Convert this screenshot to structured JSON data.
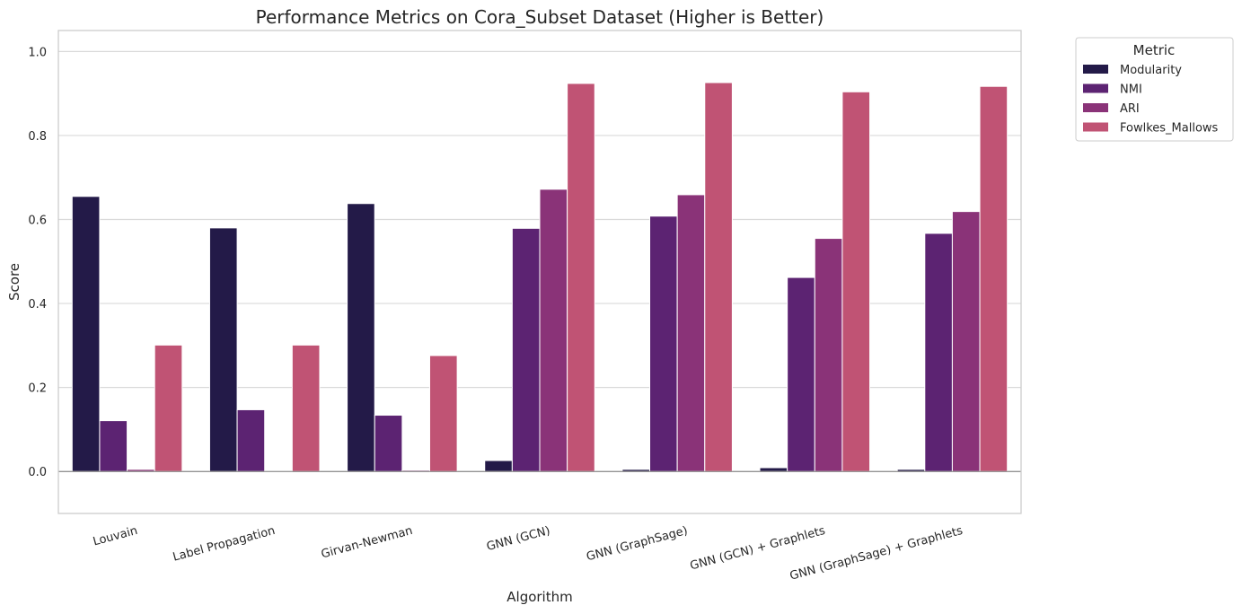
{
  "chart_data": {
    "type": "bar",
    "title": "Performance Metrics on Cora_Subset Dataset (Higher is Better)",
    "xlabel": "Algorithm",
    "ylabel": "Score",
    "ylim": [
      -0.1,
      1.05
    ],
    "yticks": [
      "0.0",
      "0.2",
      "0.4",
      "0.6",
      "0.8",
      "1.0"
    ],
    "grid": true,
    "legend_title": "Metric",
    "legend_position": "outside-top-right",
    "categories": [
      "Louvain",
      "Label Propagation",
      "Girvan-Newman",
      "GNN (GCN)",
      "GNN (GraphSage)",
      "GNN (GCN) + Graphlets",
      "GNN (GraphSage) + Graphlets"
    ],
    "series": [
      {
        "name": "Modularity",
        "color": "#231a48",
        "values": [
          0.655,
          0.58,
          0.638,
          0.026,
          0.005,
          0.009,
          0.005
        ]
      },
      {
        "name": "NMI",
        "color": "#5c2372",
        "values": [
          0.121,
          0.147,
          0.134,
          0.579,
          0.608,
          0.462,
          0.567
        ]
      },
      {
        "name": "ARI",
        "color": "#8a3378",
        "values": [
          0.005,
          -0.002,
          0.003,
          0.672,
          0.659,
          0.555,
          0.619
        ]
      },
      {
        "name": "Fowlkes_Mallows",
        "color": "#c05374",
        "values": [
          0.301,
          0.301,
          0.276,
          0.924,
          0.926,
          0.904,
          0.917
        ]
      }
    ]
  }
}
